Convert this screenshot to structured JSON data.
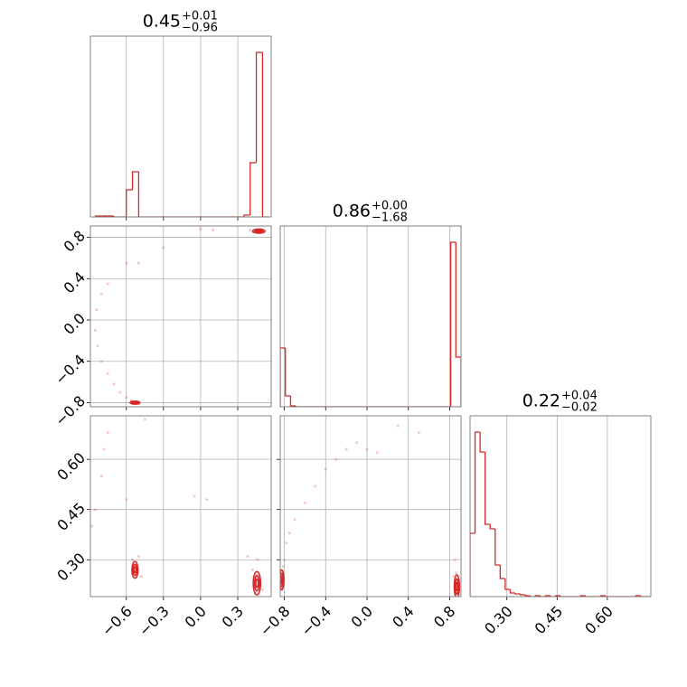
{
  "chart_data": [
    {
      "type": "histogram",
      "title": "0.45",
      "title_sup": "+0.01",
      "title_sub": "−0.96",
      "color": "#d62728",
      "grid": true,
      "bins": [
        -0.85,
        -0.8,
        -0.75,
        -0.7,
        -0.65,
        -0.6,
        -0.55,
        -0.5,
        -0.45,
        -0.4,
        -0.35,
        -0.3,
        -0.25,
        -0.2,
        -0.15,
        -0.1,
        -0.05,
        0,
        0.05,
        0.1,
        0.15,
        0.2,
        0.25,
        0.3,
        0.35,
        0.4,
        0.45,
        0.5,
        0.55
      ],
      "values": [
        1,
        1,
        1,
        0,
        0,
        30,
        50,
        0,
        0,
        0,
        0,
        0,
        0,
        0,
        0,
        0,
        0,
        0,
        0,
        0,
        0,
        0,
        0,
        0,
        2,
        60,
        182,
        0
      ],
      "xlim": [
        -0.89,
        0.57
      ],
      "ylim": [
        0,
        200
      ],
      "xticks": [
        -0.6,
        -0.3,
        0,
        0.3
      ]
    },
    {
      "type": "scatter",
      "color": "#d62728",
      "grid": true,
      "x": [
        -0.55,
        -0.52,
        -0.5,
        -0.56,
        -0.6,
        -0.65,
        -0.7,
        -0.75,
        -0.8,
        -0.83,
        -0.85,
        -0.84,
        -0.8,
        -0.75,
        -0.6,
        -0.5,
        -0.3,
        0.0,
        0.1,
        0.4,
        0.43,
        0.47,
        0.5,
        0.45
      ],
      "y": [
        -0.79,
        -0.8,
        -0.81,
        -0.78,
        -0.75,
        -0.7,
        -0.62,
        -0.52,
        -0.4,
        -0.25,
        -0.1,
        0.1,
        0.25,
        0.35,
        0.55,
        0.55,
        0.7,
        0.88,
        0.87,
        0.87,
        0.86,
        0.86,
        0.85,
        0.87
      ],
      "contours": {
        "x": [
          0.47,
          -0.53
        ],
        "y": [
          0.86,
          -0.8
        ],
        "width": [
          0.1,
          0.08
        ],
        "height": [
          0.04,
          0.03
        ]
      },
      "xlim": [
        -0.89,
        0.57
      ],
      "ylim": [
        -0.84,
        0.91
      ],
      "xticks": [
        -0.6,
        -0.3,
        0,
        0.3
      ],
      "yticks": [
        0.8,
        0.4,
        {
          "value": 0,
          "label": "0.0"
        },
        {
          "value": -0.4,
          "label": "−0.4"
        },
        {
          "value": -0.8,
          "label": "−0.8"
        }
      ]
    },
    {
      "type": "histogram",
      "title": "0.86",
      "title_sup": "+0.00",
      "title_sub": "−1.68",
      "color": "#d62728",
      "grid": true,
      "bins": [
        -0.84,
        -0.79,
        -0.74,
        -0.69,
        -0.64,
        -0.59,
        -0.54,
        -0.49,
        -0.44,
        -0.39,
        -0.34,
        -0.29,
        -0.24,
        -0.19,
        -0.14,
        -0.09,
        -0.04,
        0.01,
        0.06,
        0.11,
        0.16,
        0.21,
        0.26,
        0.31,
        0.36,
        0.41,
        0.46,
        0.51,
        0.56,
        0.61,
        0.66,
        0.71,
        0.76,
        0.81,
        0.86,
        0.91
      ],
      "values": [
        65,
        12,
        1,
        0,
        0,
        0,
        0,
        0,
        0,
        0,
        0,
        0,
        0,
        0,
        0,
        0,
        0,
        0,
        0,
        0,
        0,
        0,
        0,
        0,
        0,
        0,
        0,
        0,
        0,
        0,
        0,
        0,
        0,
        182,
        55
      ],
      "xlim": [
        -0.84,
        0.91
      ],
      "ylim": [
        0,
        200
      ],
      "xticks": [
        -0.8,
        -0.4,
        0,
        0.4,
        0.8
      ]
    },
    {
      "type": "scatter",
      "color": "#d62728",
      "grid": true,
      "x": [
        -0.52,
        -0.55,
        -0.5,
        -0.55,
        -0.48,
        -0.85,
        -0.8,
        -0.78,
        -0.75,
        -0.6,
        -0.45,
        -0.05,
        0.05,
        0.38,
        0.42,
        0.45,
        0.48,
        0.46,
        0.44,
        0.5,
        -0.88
      ],
      "y": [
        0.28,
        0.3,
        0.31,
        0.26,
        0.25,
        0.45,
        0.55,
        0.63,
        0.68,
        0.48,
        0.72,
        0.49,
        0.48,
        0.31,
        0.27,
        0.25,
        0.24,
        0.3,
        0.2,
        0.21,
        0.4
      ],
      "contours": {
        "x": [
          -0.53,
          0.455
        ],
        "y": [
          0.27,
          0.23
        ],
        "width": [
          0.05,
          0.06
        ],
        "height": [
          0.05,
          0.07
        ]
      },
      "xlim": [
        -0.89,
        0.57
      ],
      "ylim": [
        0.19,
        0.73
      ],
      "xticks": [
        {
          "value": -0.6,
          "label": "−0.6"
        },
        {
          "value": -0.3,
          "label": "−0.3"
        },
        {
          "value": 0,
          "label": "0.0"
        },
        0.3
      ],
      "yticks": [
        {
          "value": 0.3,
          "label": "0.30"
        },
        0.45,
        {
          "value": 0.6,
          "label": "0.60"
        }
      ]
    },
    {
      "type": "scatter",
      "color": "#d62728",
      "grid": true,
      "x": [
        -0.82,
        -0.8,
        -0.78,
        -0.75,
        -0.7,
        -0.6,
        -0.5,
        -0.4,
        -0.3,
        -0.2,
        -0.1,
        0.0,
        0.1,
        0.3,
        0.5,
        0.85,
        0.86,
        0.88,
        0.87,
        0.84,
        -0.83,
        -0.81
      ],
      "y": [
        0.25,
        0.3,
        0.35,
        0.38,
        0.42,
        0.47,
        0.52,
        0.57,
        0.6,
        0.63,
        0.65,
        0.63,
        0.62,
        0.7,
        0.68,
        0.3,
        0.26,
        0.22,
        0.2,
        0.25,
        0.22,
        0.28
      ],
      "contours": {
        "x": [
          -0.825,
          0.87
        ],
        "y": [
          0.24,
          0.22
        ],
        "width": [
          0.04,
          0.05
        ],
        "height": [
          0.06,
          0.07
        ]
      },
      "xlim": [
        -0.84,
        0.91
      ],
      "ylim": [
        0.19,
        0.73
      ],
      "xticks": [
        {
          "value": -0.8,
          "label": "−0.8"
        },
        {
          "value": -0.4,
          "label": "−0.4"
        },
        {
          "value": 0,
          "label": "0.0"
        },
        0.4,
        0.8
      ],
      "yticks": [
        0.3,
        0.45,
        0.6
      ]
    },
    {
      "type": "histogram",
      "title": "0.22",
      "title_sup": "+0.04",
      "title_sub": "−0.02",
      "color": "#d62728",
      "grid": true,
      "bins": [
        0.19,
        0.205,
        0.22,
        0.235,
        0.25,
        0.265,
        0.28,
        0.295,
        0.31,
        0.325,
        0.34,
        0.355,
        0.37,
        0.385,
        0.4,
        0.415,
        0.43,
        0.445,
        0.46,
        0.475,
        0.49,
        0.505,
        0.52,
        0.535,
        0.55,
        0.565,
        0.58,
        0.595,
        0.61,
        0.625,
        0.64,
        0.655,
        0.67,
        0.685,
        0.7,
        0.715,
        0.73
      ],
      "values": [
        70,
        182,
        160,
        80,
        75,
        35,
        20,
        8,
        4,
        3,
        2,
        1,
        0,
        1,
        0,
        1,
        0,
        1,
        0,
        0,
        0,
        0,
        1,
        0,
        0,
        0,
        1,
        0,
        0,
        0,
        0,
        0,
        0,
        1,
        0,
        0
      ],
      "xlim": [
        0.19,
        0.73
      ],
      "ylim": [
        0,
        200
      ],
      "xticks": [
        {
          "value": 0.3,
          "label": "0.30"
        },
        0.45,
        {
          "value": 0.6,
          "label": "0.60"
        }
      ]
    }
  ]
}
